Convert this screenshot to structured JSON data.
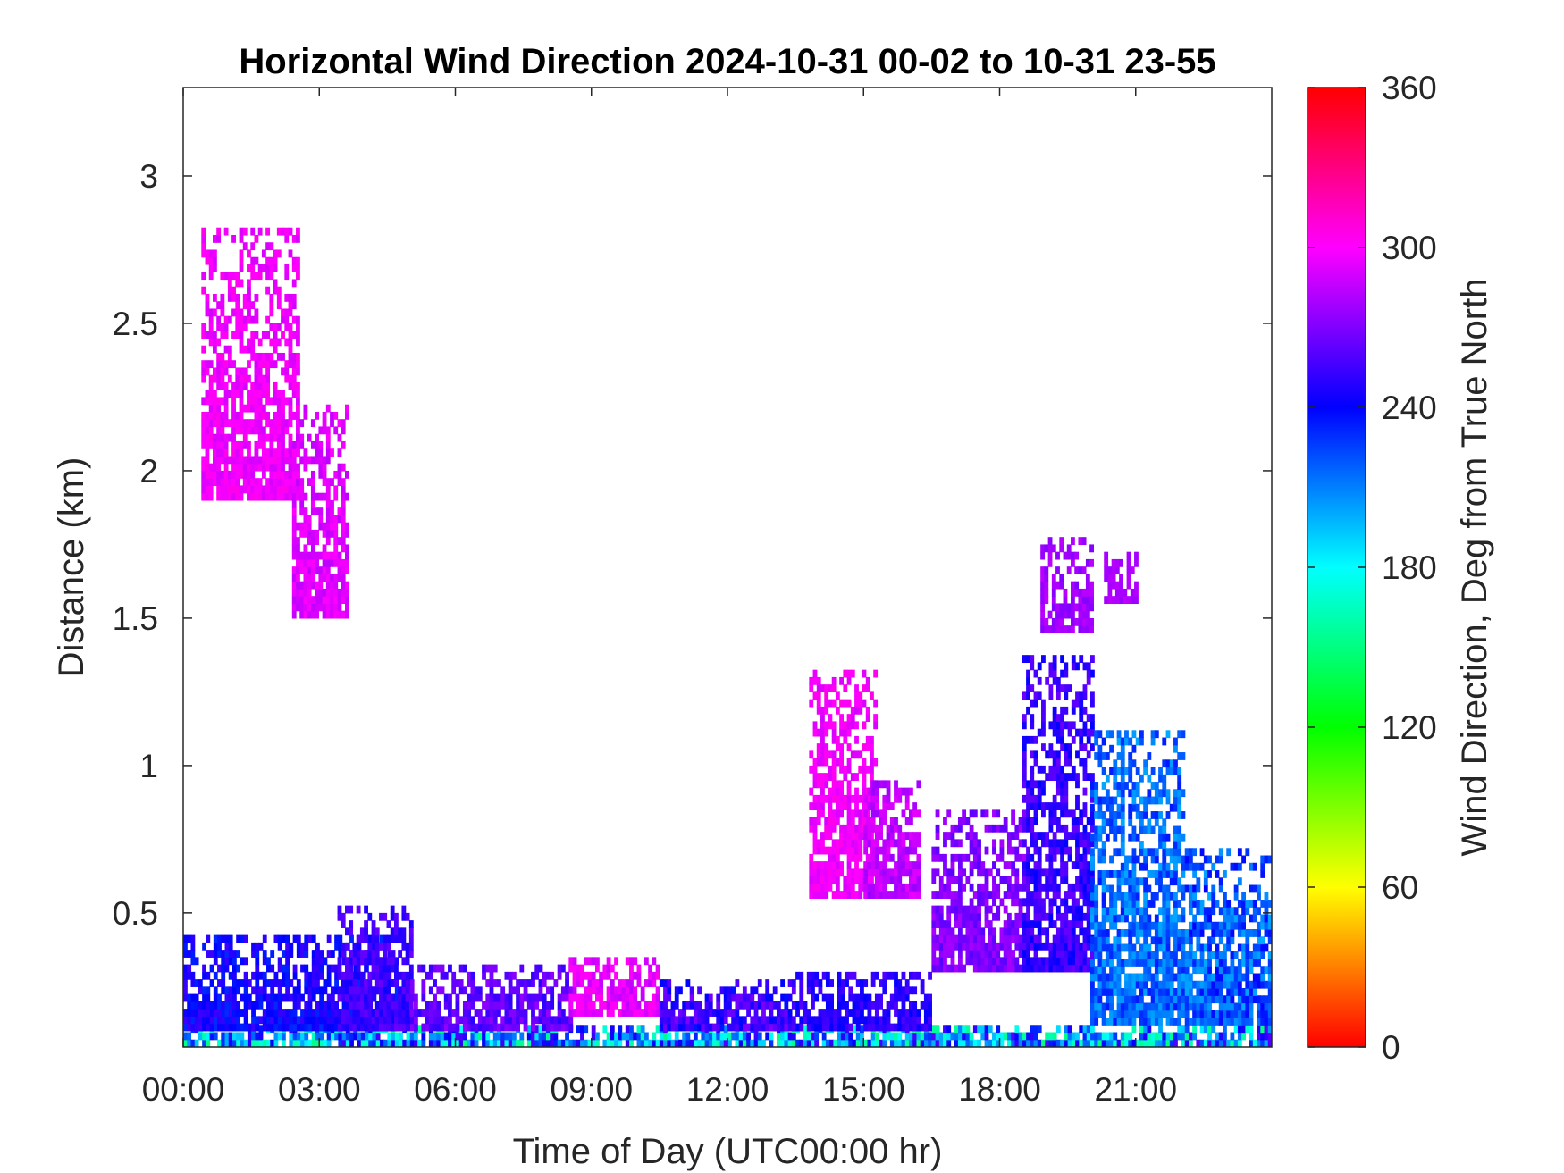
{
  "chart_data": {
    "type": "heatmap",
    "title": "Horizontal Wind Direction 2024-10-31 00-02 to 10-31 23-55",
    "xlabel": "Time of Day (UTC00:00 hr)",
    "ylabel": "Distance (km)",
    "xlim": [
      0,
      24
    ],
    "ylim": [
      0.045,
      3.3
    ],
    "x_ticks": [
      {
        "value": 0,
        "label": "00:00"
      },
      {
        "value": 3,
        "label": "03:00"
      },
      {
        "value": 6,
        "label": "06:00"
      },
      {
        "value": 9,
        "label": "09:00"
      },
      {
        "value": 12,
        "label": "12:00"
      },
      {
        "value": 15,
        "label": "15:00"
      },
      {
        "value": 18,
        "label": "18:00"
      },
      {
        "value": 21,
        "label": "21:00"
      }
    ],
    "y_ticks": [
      {
        "value": 0.5,
        "label": "0.5"
      },
      {
        "value": 1,
        "label": "1"
      },
      {
        "value": 1.5,
        "label": "1.5"
      },
      {
        "value": 2,
        "label": "2"
      },
      {
        "value": 2.5,
        "label": "2.5"
      },
      {
        "value": 3,
        "label": "3"
      }
    ],
    "colorbar": {
      "label": "Wind Direction, Deg from True North",
      "range": [
        0,
        360
      ],
      "colormap": "hsv",
      "ticks": [
        {
          "value": 0,
          "label": "0"
        },
        {
          "value": 60,
          "label": "60"
        },
        {
          "value": 120,
          "label": "120"
        },
        {
          "value": 180,
          "label": "180"
        },
        {
          "value": 240,
          "label": "240"
        },
        {
          "value": 300,
          "label": "300"
        },
        {
          "value": 360,
          "label": "360"
        }
      ]
    },
    "grid": false,
    "regions": [
      {
        "t": [
          0,
          24
        ],
        "d": [
          0.045,
          0.12
        ],
        "dir": [
          150,
          260
        ]
      },
      {
        "t": [
          0,
          4.7
        ],
        "d": [
          0.1,
          0.42
        ],
        "dir": [
          230,
          255
        ]
      },
      {
        "t": [
          3.4,
          5.0
        ],
        "d": [
          0.1,
          0.52
        ],
        "dir": [
          245,
          265
        ]
      },
      {
        "t": [
          5.0,
          8.5
        ],
        "d": [
          0.1,
          0.32
        ],
        "dir": [
          250,
          275
        ]
      },
      {
        "t": [
          8.5,
          10.5
        ],
        "d": [
          0.15,
          0.33
        ],
        "dir": [
          285,
          305
        ]
      },
      {
        "t": [
          10.5,
          13.5
        ],
        "d": [
          0.1,
          0.26
        ],
        "dir": [
          235,
          270
        ]
      },
      {
        "t": [
          13.5,
          16.5
        ],
        "d": [
          0.1,
          0.3
        ],
        "dir": [
          240,
          260
        ]
      },
      {
        "t": [
          0.4,
          2.5
        ],
        "d": [
          1.9,
          2.8
        ],
        "dir": [
          290,
          305
        ]
      },
      {
        "t": [
          2.4,
          3.6
        ],
        "d": [
          1.5,
          2.2
        ],
        "dir": [
          285,
          300
        ]
      },
      {
        "t": [
          13.8,
          15.3
        ],
        "d": [
          0.55,
          1.3
        ],
        "dir": [
          290,
          305
        ]
      },
      {
        "t": [
          15.0,
          16.2
        ],
        "d": [
          0.55,
          0.95
        ],
        "dir": [
          275,
          295
        ]
      },
      {
        "t": [
          16.5,
          18.5
        ],
        "d": [
          0.3,
          0.85
        ],
        "dir": [
          260,
          280
        ]
      },
      {
        "t": [
          18.5,
          20.0
        ],
        "d": [
          0.3,
          1.35
        ],
        "dir": [
          240,
          265
        ]
      },
      {
        "t": [
          20.0,
          22.0
        ],
        "d": [
          0.12,
          1.1
        ],
        "dir": [
          200,
          235
        ]
      },
      {
        "t": [
          22.0,
          24.0
        ],
        "d": [
          0.12,
          0.7
        ],
        "dir": [
          200,
          240
        ]
      },
      {
        "t": [
          18.9,
          20.0
        ],
        "d": [
          1.45,
          1.75
        ],
        "dir": [
          270,
          285
        ]
      },
      {
        "t": [
          20.3,
          21.0
        ],
        "d": [
          1.55,
          1.7
        ],
        "dir": [
          275,
          285
        ]
      }
    ]
  }
}
